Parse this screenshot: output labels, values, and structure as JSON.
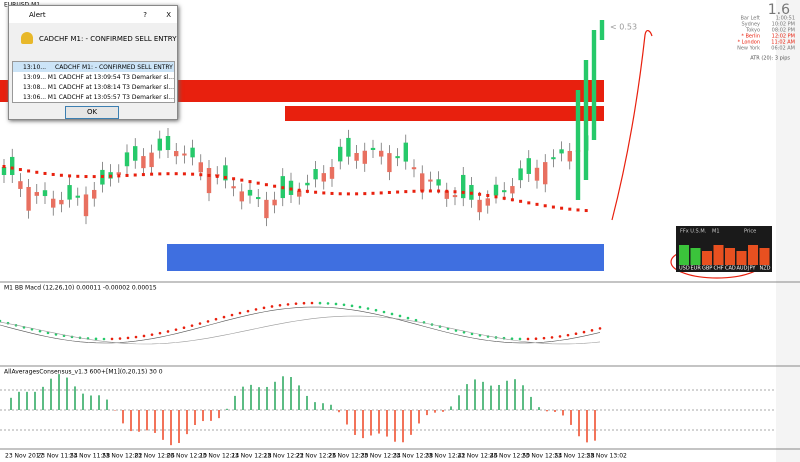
{
  "window": {
    "title": "EURUSD,M1"
  },
  "alert": {
    "title": "Alert",
    "help": "?",
    "close": "X",
    "message": "CADCHF M1: - CONFIRMED SELL ENTRY",
    "rows": [
      [
        "13:10...",
        "CADCHF M1: - CONFIRMED SELL ENTRY"
      ],
      [
        "13:09...",
        "M1 CADCHF at 13:09:54 T3 Demarker sl..."
      ],
      [
        "13:08...",
        "M1 CADCHF at 13:08:14 T3 Demarker sl..."
      ],
      [
        "13:06...",
        "M1 CADCHF at 13:05:57 T3 Demarker sl..."
      ]
    ],
    "button": "OK"
  },
  "main_chart": {
    "spread_label": "< 0.53"
  },
  "info_panel": {
    "big": "1.6",
    "rows": [
      [
        "Bar Left",
        "1:00:51"
      ],
      [
        "Sydney",
        "10:02 PM"
      ],
      [
        "Tokyo",
        "08:02 PM"
      ],
      [
        "* Berlin",
        "12:02 PM"
      ],
      [
        "* London",
        "11:02 AM"
      ],
      [
        "New York",
        "06:02 AM"
      ]
    ],
    "atr": "ATR (20): 3 pips"
  },
  "strength_panel": {
    "header": [
      "FFx U.S.M.",
      "M1",
      "Price"
    ],
    "currencies": [
      "USD",
      "EUR",
      "GBP",
      "CHF",
      "CAD",
      "AUD",
      "JPY",
      "NZD"
    ]
  },
  "indicators": [
    "M1 BB Macd (12,26,10) 0.00011 -0.00002 0.00015",
    "AllAveragesConsensus_v1.3 600+[M1](0,20,15) 30 0"
  ],
  "time_axis": [
    "23 Nov 2017",
    "23 Nov 11:54",
    "23 Nov 11:58",
    "23 Nov 12:02",
    "23 Nov 12:06",
    "23 Nov 12:10",
    "23 Nov 12:14",
    "23 Nov 12:18",
    "23 Nov 12:22",
    "23 Nov 12:26",
    "23 Nov 12:30",
    "23 Nov 12:34",
    "23 Nov 12:38",
    "23 Nov 12:42",
    "23 Nov 12:46",
    "23 Nov 12:50",
    "23 Nov 12:54",
    "23 Nov 12:58",
    "23 Nov 13:02"
  ]
}
